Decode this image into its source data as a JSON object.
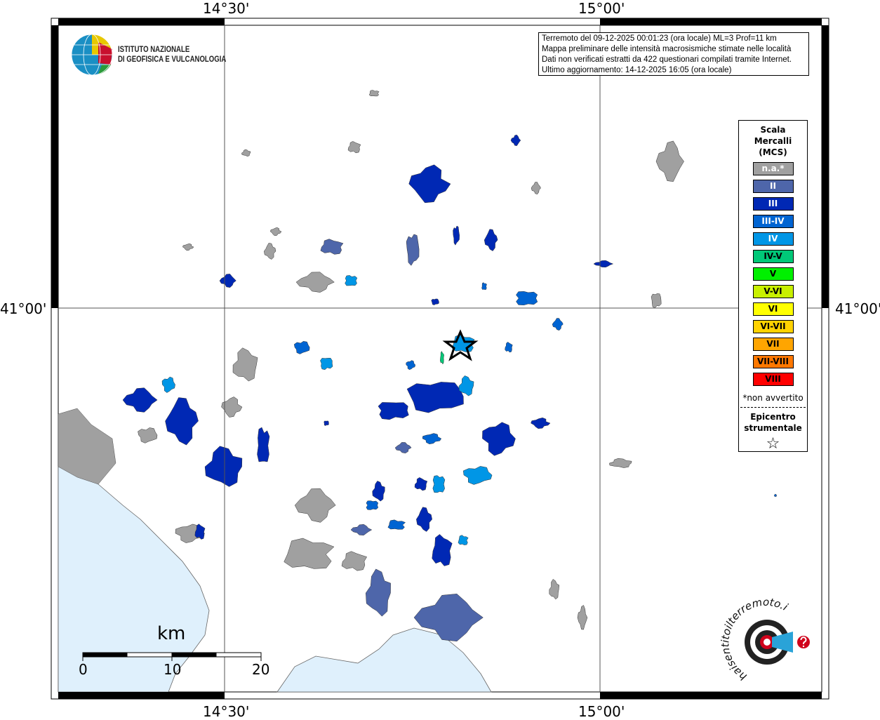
{
  "map": {
    "lon_ticks": [
      "14°30'",
      "15°00'"
    ],
    "lat_ticks": [
      "41°00'"
    ],
    "sea_color": "#dff0fc",
    "grid": true
  },
  "logo_ingv": {
    "line1": "ISTITUTO NAZIONALE",
    "line2": "DI GEOFISICA E VULCANOLOGIA"
  },
  "logo_hsit": {
    "text": "www.haisentitoilterremoto.it"
  },
  "info": {
    "lines": [
      "Terremoto del 09-12-2025 00:01:23 (ora locale) ML=3 Prof=11 km",
      "Mappa preliminare delle intensità macrosismiche stimate nelle località",
      "Dati non verificati estratti da 422 questionari compilati tramite Internet.",
      "Ultimo aggiornamento: 14-12-2025 16:05 (ora locale)"
    ]
  },
  "legend": {
    "title": [
      "Scala",
      "Mercalli",
      "(MCS)"
    ],
    "items": [
      {
        "label": "n.a.*",
        "color": "#a0a0a0",
        "text_color": "#ffffff"
      },
      {
        "label": "II",
        "color": "#4e66aa",
        "text_color": "#ffffff"
      },
      {
        "label": "III",
        "color": "#0028b4",
        "text_color": "#ffffff"
      },
      {
        "label": "III-IV",
        "color": "#0064d2",
        "text_color": "#ffffff"
      },
      {
        "label": "IV",
        "color": "#0096e6",
        "text_color": "#ffffff"
      },
      {
        "label": "IV-V",
        "color": "#00c878",
        "text_color": "#000000"
      },
      {
        "label": "V",
        "color": "#00f000",
        "text_color": "#000000"
      },
      {
        "label": "V-VI",
        "color": "#c8f000",
        "text_color": "#000000"
      },
      {
        "label": "VI",
        "color": "#ffff00",
        "text_color": "#000000"
      },
      {
        "label": "VI-VII",
        "color": "#ffd200",
        "text_color": "#000000"
      },
      {
        "label": "VII",
        "color": "#ffa500",
        "text_color": "#000000"
      },
      {
        "label": "VII-VIII",
        "color": "#ff7800",
        "text_color": "#000000"
      },
      {
        "label": "VIII",
        "color": "#ff0000",
        "text_color": "#000000"
      }
    ],
    "note": "*non avvertito",
    "epicenter_label": [
      "Epicentro",
      "strumentale"
    ],
    "epicenter_symbol": "☆"
  },
  "scalebar": {
    "unit": "km",
    "labels": [
      "0",
      "10",
      "20"
    ]
  }
}
